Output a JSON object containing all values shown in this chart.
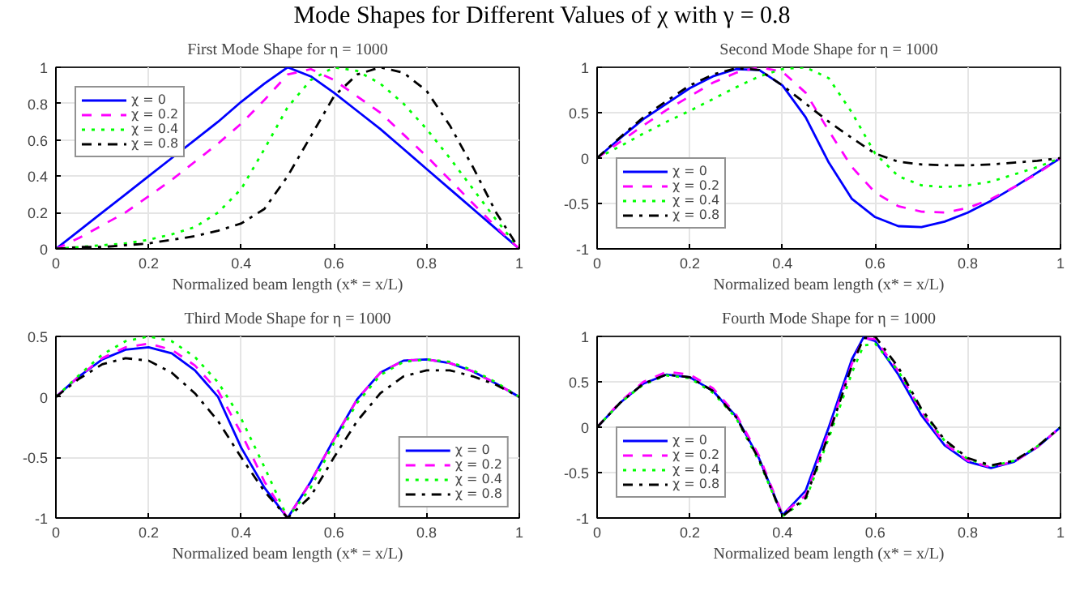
{
  "chart_data": [
    {
      "type": "line",
      "title": "First Mode Shape for η = 1000",
      "xlabel": "Normalized beam length (x* = x/L)",
      "annotations": [
        "Mode Shapes for Different Values of χ with γ = 0.8"
      ],
      "x": [
        0,
        0.05,
        0.1,
        0.15,
        0.2,
        0.25,
        0.3,
        0.35,
        0.4,
        0.45,
        0.5,
        0.55,
        0.6,
        0.65,
        0.7,
        0.75,
        0.8,
        0.85,
        0.9,
        0.95,
        1
      ],
      "xlim": [
        0,
        1
      ],
      "xticks": [
        0,
        0.2,
        0.4,
        0.6,
        0.8,
        1
      ],
      "ylim": [
        0,
        1
      ],
      "yticks": [
        0,
        0.2,
        0.4,
        0.6,
        0.8,
        1
      ],
      "grid": true,
      "legend": "top left",
      "series": [
        {
          "name": "χ = 0",
          "color": "#0000ff",
          "line_style": "solid",
          "values": [
            0,
            0.1,
            0.2,
            0.3,
            0.4,
            0.5,
            0.6,
            0.7,
            0.81,
            0.91,
            1.0,
            0.95,
            0.86,
            0.76,
            0.66,
            0.55,
            0.44,
            0.33,
            0.22,
            0.11,
            0
          ]
        },
        {
          "name": "χ = 0.2",
          "color": "#ff00ff",
          "line_style": "dashed",
          "values": [
            0,
            0.06,
            0.13,
            0.2,
            0.29,
            0.38,
            0.48,
            0.58,
            0.69,
            0.82,
            0.96,
            0.99,
            0.93,
            0.84,
            0.75,
            0.63,
            0.51,
            0.38,
            0.25,
            0.12,
            0
          ]
        },
        {
          "name": "χ = 0.4",
          "color": "#00ff00",
          "line_style": "dotted",
          "values": [
            0,
            0.01,
            0.02,
            0.03,
            0.05,
            0.08,
            0.12,
            0.2,
            0.33,
            0.55,
            0.78,
            0.93,
            1.0,
            0.98,
            0.91,
            0.8,
            0.66,
            0.5,
            0.33,
            0.16,
            0
          ]
        },
        {
          "name": "χ = 0.8",
          "color": "#000000",
          "line_style": "dashdot",
          "values": [
            0,
            0.01,
            0.01,
            0.02,
            0.03,
            0.05,
            0.07,
            0.1,
            0.14,
            0.22,
            0.4,
            0.62,
            0.84,
            0.96,
            1.0,
            0.97,
            0.87,
            0.68,
            0.45,
            0.2,
            0
          ]
        }
      ]
    },
    {
      "type": "line",
      "title": "Second Mode Shape for η = 1000",
      "xlabel": "Normalized beam length (x* = x/L)",
      "x": [
        0,
        0.05,
        0.1,
        0.15,
        0.2,
        0.25,
        0.3,
        0.35,
        0.4,
        0.45,
        0.5,
        0.55,
        0.6,
        0.65,
        0.7,
        0.75,
        0.8,
        0.85,
        0.9,
        0.95,
        1
      ],
      "xlim": [
        0,
        1
      ],
      "xticks": [
        0,
        0.2,
        0.4,
        0.6,
        0.8,
        1
      ],
      "ylim": [
        -1,
        1
      ],
      "yticks": [
        -1,
        -0.5,
        0,
        0.5,
        1
      ],
      "grid": true,
      "legend": "bottom left",
      "series": [
        {
          "name": "χ = 0",
          "color": "#0000ff",
          "line_style": "solid",
          "values": [
            0,
            0.22,
            0.43,
            0.6,
            0.77,
            0.9,
            0.98,
            0.97,
            0.8,
            0.45,
            -0.05,
            -0.45,
            -0.65,
            -0.75,
            -0.76,
            -0.7,
            -0.6,
            -0.47,
            -0.32,
            -0.16,
            0
          ]
        },
        {
          "name": "χ = 0.2",
          "color": "#ff00ff",
          "line_style": "dashed",
          "values": [
            0,
            0.18,
            0.36,
            0.53,
            0.68,
            0.83,
            0.94,
            1.0,
            0.95,
            0.72,
            0.3,
            -0.1,
            -0.38,
            -0.53,
            -0.59,
            -0.6,
            -0.55,
            -0.45,
            -0.32,
            -0.17,
            0
          ]
        },
        {
          "name": "χ = 0.4",
          "color": "#00ff00",
          "line_style": "dotted",
          "values": [
            0,
            0.13,
            0.27,
            0.4,
            0.52,
            0.65,
            0.78,
            0.9,
            0.98,
            1.0,
            0.88,
            0.5,
            0.05,
            -0.2,
            -0.3,
            -0.32,
            -0.3,
            -0.26,
            -0.18,
            -0.1,
            0
          ]
        },
        {
          "name": "χ = 0.8",
          "color": "#000000",
          "line_style": "dashdot",
          "values": [
            0,
            0.23,
            0.45,
            0.63,
            0.8,
            0.92,
            0.99,
            0.97,
            0.8,
            0.6,
            0.4,
            0.22,
            0.05,
            -0.04,
            -0.07,
            -0.08,
            -0.08,
            -0.07,
            -0.05,
            -0.03,
            0
          ]
        }
      ]
    },
    {
      "type": "line",
      "title": "Third Mode Shape for η = 1000",
      "xlabel": "Normalized beam length (x* = x/L)",
      "x": [
        0,
        0.05,
        0.1,
        0.15,
        0.2,
        0.25,
        0.3,
        0.35,
        0.4,
        0.45,
        0.5,
        0.55,
        0.6,
        0.65,
        0.7,
        0.75,
        0.8,
        0.85,
        0.9,
        0.95,
        1
      ],
      "xlim": [
        0,
        1
      ],
      "xticks": [
        0,
        0.2,
        0.4,
        0.6,
        0.8,
        1
      ],
      "ylim": [
        -1,
        0.5
      ],
      "yticks": [
        -1,
        -0.5,
        0,
        0.5
      ],
      "grid": true,
      "legend": "bottom right",
      "series": [
        {
          "name": "χ = 0",
          "color": "#0000ff",
          "line_style": "solid",
          "values": [
            0,
            0.17,
            0.31,
            0.39,
            0.41,
            0.36,
            0.22,
            0.0,
            -0.42,
            -0.75,
            -1.0,
            -0.7,
            -0.35,
            -0.02,
            0.2,
            0.3,
            0.31,
            0.28,
            0.21,
            0.11,
            0
          ]
        },
        {
          "name": "χ = 0.2",
          "color": "#ff00ff",
          "line_style": "dashed",
          "values": [
            0,
            0.17,
            0.32,
            0.41,
            0.44,
            0.39,
            0.26,
            0.05,
            -0.3,
            -0.7,
            -1.0,
            -0.7,
            -0.35,
            -0.02,
            0.2,
            0.3,
            0.31,
            0.28,
            0.21,
            0.11,
            0
          ]
        },
        {
          "name": "χ = 0.4",
          "color": "#00ff00",
          "line_style": "dotted",
          "values": [
            0,
            0.18,
            0.35,
            0.46,
            0.5,
            0.46,
            0.33,
            0.12,
            -0.18,
            -0.58,
            -1.0,
            -0.75,
            -0.38,
            -0.05,
            0.18,
            0.29,
            0.31,
            0.29,
            0.22,
            0.12,
            0
          ]
        },
        {
          "name": "χ = 0.8",
          "color": "#000000",
          "line_style": "dashdot",
          "values": [
            0,
            0.15,
            0.27,
            0.32,
            0.3,
            0.2,
            0.03,
            -0.2,
            -0.5,
            -0.78,
            -1.0,
            -0.82,
            -0.5,
            -0.2,
            0.03,
            0.17,
            0.22,
            0.22,
            0.17,
            0.1,
            0
          ]
        }
      ]
    },
    {
      "type": "line",
      "title": "Fourth Mode Shape for η = 1000",
      "xlabel": "Normalized beam length (x* = x/L)",
      "x": [
        0,
        0.05,
        0.1,
        0.15,
        0.2,
        0.25,
        0.3,
        0.35,
        0.4,
        0.45,
        0.5,
        0.55,
        0.575,
        0.6,
        0.65,
        0.7,
        0.75,
        0.8,
        0.85,
        0.9,
        0.95,
        1
      ],
      "xlim": [
        0,
        1
      ],
      "xticks": [
        0,
        0.2,
        0.4,
        0.6,
        0.8,
        1
      ],
      "ylim": [
        -1,
        1
      ],
      "yticks": [
        -1,
        -0.5,
        0,
        0.5,
        1
      ],
      "grid": true,
      "legend": "bottom left",
      "series": [
        {
          "name": "χ = 0",
          "color": "#0000ff",
          "line_style": "solid",
          "values": [
            0,
            0.27,
            0.48,
            0.58,
            0.55,
            0.4,
            0.12,
            -0.35,
            -0.97,
            -0.7,
            0.0,
            0.75,
            0.99,
            0.95,
            0.58,
            0.13,
            -0.2,
            -0.38,
            -0.45,
            -0.38,
            -0.22,
            0
          ]
        },
        {
          "name": "χ = 0.2",
          "color": "#ff00ff",
          "line_style": "dashed",
          "values": [
            0,
            0.28,
            0.5,
            0.61,
            0.58,
            0.43,
            0.14,
            -0.32,
            -0.96,
            -0.75,
            -0.05,
            0.7,
            0.98,
            0.97,
            0.62,
            0.17,
            -0.18,
            -0.37,
            -0.44,
            -0.38,
            -0.22,
            0
          ]
        },
        {
          "name": "χ = 0.4",
          "color": "#00ff00",
          "line_style": "dotted",
          "values": [
            0,
            0.27,
            0.47,
            0.57,
            0.54,
            0.38,
            0.1,
            -0.38,
            -0.98,
            -0.8,
            -0.12,
            0.6,
            0.9,
            0.92,
            0.62,
            0.18,
            -0.15,
            -0.35,
            -0.43,
            -0.37,
            -0.21,
            0
          ]
        },
        {
          "name": "χ = 0.8",
          "color": "#000000",
          "line_style": "dashdot",
          "values": [
            0,
            0.27,
            0.48,
            0.58,
            0.55,
            0.4,
            0.11,
            -0.36,
            -0.98,
            -0.78,
            -0.08,
            0.68,
            0.98,
            1.0,
            0.66,
            0.2,
            -0.14,
            -0.34,
            -0.42,
            -0.37,
            -0.21,
            0
          ]
        }
      ]
    }
  ]
}
